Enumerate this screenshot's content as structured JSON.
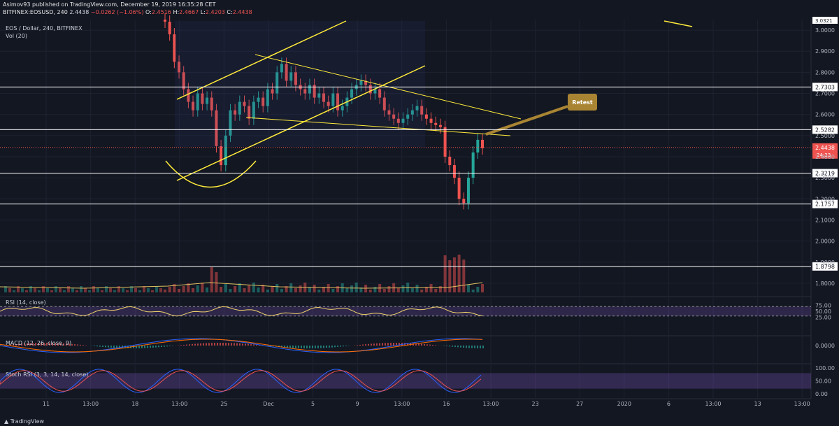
{
  "header": {
    "published": "Asimov93 published on TradingView.com, December 19, 2019 16:35:28 CET",
    "symbol": "BITFINEX:EOSUSD, 240",
    "last": "2.4438",
    "change": "−0.0262 (−1.06%)",
    "o_label": "O:",
    "o_value": "2.4516",
    "h_label": "H:",
    "h_value": "2.4667",
    "l_label": "L:",
    "l_value": "2.4203",
    "c_label": "C:",
    "c_value": "2.4438"
  },
  "main_pane": {
    "title": "EOS / Dollar, 240, BITFINEX",
    "volume_label": "Vol (20)"
  },
  "rsi_pane": {
    "label": "RSI (14, close)"
  },
  "macd_pane": {
    "label": "MACD (12, 26, close, 9)"
  },
  "stoch_pane": {
    "label": "Stoch RSI (3, 3, 14, 14, close)"
  },
  "footer": {
    "brand": "TradingView"
  },
  "colors": {
    "background": "#131722",
    "up": "#26a69a",
    "down": "#ef5350",
    "trendline": "#ffeb3b",
    "level_line": "#ffffff",
    "current_price": "#ef5350",
    "annotation": "#a98533",
    "rsi_band": "#7e57c2",
    "macd": "#2962ff",
    "signal": "#ff6d00"
  },
  "chart_data": [
    {
      "type": "candlestick",
      "ylim": [
        1.75,
        3.05
      ],
      "y_ticks": [
        1.8,
        1.9,
        2.0,
        2.1,
        2.2,
        2.3,
        2.4,
        2.5,
        2.6,
        2.7,
        2.8,
        2.9,
        3.0
      ],
      "y_tick_labels": [
        "1.8000",
        "1.9000",
        "2.0000",
        "2.1000",
        "2.2000",
        "2.3000",
        "2.4000",
        "2.5000",
        "2.6000",
        "2.7000",
        "2.8000",
        "2.9000",
        "3.0000"
      ],
      "x_tick_labels": [
        "11",
        "13:00",
        "18",
        "13:00",
        "25",
        "Dec",
        "5",
        "9",
        "13:00",
        "16",
        "13:00",
        "23",
        "27",
        "2020",
        "6",
        "13:00",
        "13",
        "13:00"
      ],
      "levels": [
        {
          "value": 2.7303,
          "label": "2.7303"
        },
        {
          "value": 2.5282,
          "label": "2.5282"
        },
        {
          "value": 2.3219,
          "label": "2.3219"
        },
        {
          "value": 2.1757,
          "label": "2.1757"
        },
        {
          "value": 1.8798,
          "label": "1.8798"
        }
      ],
      "current_price": {
        "value": 2.4438,
        "label": "2.4438",
        "countdown": "24:33"
      },
      "top_label": "3.0321",
      "annotation": "Retest",
      "closes": [
        3.04,
        2.98,
        2.85,
        2.8,
        2.72,
        2.66,
        2.62,
        2.7,
        2.65,
        2.68,
        2.62,
        2.45,
        2.36,
        2.5,
        2.62,
        2.6,
        2.66,
        2.64,
        2.58,
        2.66,
        2.68,
        2.64,
        2.72,
        2.7,
        2.8,
        2.84,
        2.76,
        2.8,
        2.74,
        2.72,
        2.7,
        2.74,
        2.68,
        2.7,
        2.66,
        2.64,
        2.7,
        2.62,
        2.64,
        2.68,
        2.72,
        2.74,
        2.76,
        2.74,
        2.7,
        2.72,
        2.68,
        2.62,
        2.6,
        2.58,
        2.56,
        2.58,
        2.6,
        2.62,
        2.64,
        2.6,
        2.58,
        2.56,
        2.55,
        2.54,
        2.4,
        2.36,
        2.3,
        2.2,
        2.18,
        2.3,
        2.42,
        2.48,
        2.44
      ]
    },
    {
      "type": "line",
      "name": "RSI",
      "ylim": [
        0,
        100
      ],
      "y_tick_labels": [
        "75.00",
        "50.00",
        "25.00"
      ],
      "bands": [
        30,
        70
      ]
    },
    {
      "type": "line",
      "name": "MACD",
      "y_tick_labels": [
        "0.0000"
      ]
    },
    {
      "type": "line",
      "name": "Stoch RSI",
      "ylim": [
        0,
        100
      ],
      "y_tick_labels": [
        "100.00",
        "50.00",
        "0.00"
      ]
    }
  ]
}
